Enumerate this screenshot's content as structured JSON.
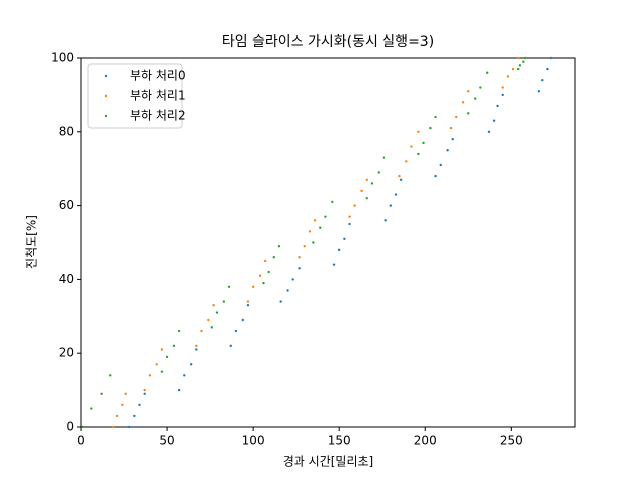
{
  "chart_data": {
    "type": "scatter",
    "title": "타임 슬라이스 가시화(동시 실행=3)",
    "x_label": "경과 시간[밀리초]",
    "y_label": "진척도[%]",
    "xlim": [
      0,
      287
    ],
    "ylim": [
      0,
      100
    ],
    "xticks": [
      0,
      50,
      100,
      150,
      200,
      250
    ],
    "yticks": [
      0,
      20,
      40,
      60,
      80,
      100
    ],
    "grid": false,
    "legend": "upper left",
    "series": [
      {
        "name": "부하 처리0",
        "color": "#1f77b4",
        "x": [
          28,
          31,
          34,
          37,
          57,
          60,
          64,
          67,
          87,
          90,
          94,
          97,
          116,
          120,
          123,
          127,
          147,
          150,
          153,
          156,
          177,
          180,
          183,
          186,
          206,
          209,
          213,
          216,
          237,
          240,
          242,
          245,
          266,
          268,
          271,
          273
        ],
        "values": [
          0,
          3,
          6,
          9,
          10,
          14,
          17,
          21,
          22,
          26,
          29,
          33,
          34,
          37,
          40,
          43,
          44,
          48,
          51,
          55,
          56,
          60,
          63,
          67,
          68,
          71,
          75,
          78,
          80,
          83,
          87,
          90,
          91,
          94,
          97,
          100
        ]
      },
      {
        "name": "부하 처리1",
        "color": "#ff7f0e",
        "x": [
          19,
          21,
          24,
          26,
          37,
          40,
          44,
          47,
          67,
          70,
          74,
          77,
          97,
          100,
          104,
          107,
          127,
          130,
          133,
          136,
          156,
          159,
          163,
          166,
          185,
          189,
          192,
          196,
          215,
          218,
          222,
          225,
          245,
          248,
          251,
          254
        ],
        "values": [
          0,
          3,
          6,
          9,
          10,
          14,
          17,
          21,
          22,
          26,
          29,
          33,
          34,
          38,
          41,
          45,
          46,
          49,
          53,
          56,
          57,
          60,
          64,
          67,
          68,
          72,
          76,
          80,
          81,
          84,
          88,
          91,
          92,
          95,
          97,
          100
        ]
      },
      {
        "name": "부하 처리2",
        "color": "#2ca02c",
        "x": [
          1,
          6,
          12,
          17,
          47,
          50,
          54,
          57,
          76,
          79,
          83,
          86,
          106,
          109,
          112,
          115,
          135,
          139,
          142,
          146,
          166,
          169,
          173,
          176,
          196,
          199,
          203,
          206,
          225,
          229,
          232,
          236,
          254,
          255,
          257,
          258
        ],
        "values": [
          0,
          5,
          9,
          14,
          15,
          19,
          22,
          26,
          27,
          31,
          34,
          38,
          39,
          42,
          46,
          49,
          50,
          54,
          57,
          61,
          62,
          66,
          69,
          73,
          74,
          77,
          81,
          84,
          85,
          89,
          92,
          96,
          97,
          98,
          99,
          100
        ]
      }
    ]
  }
}
